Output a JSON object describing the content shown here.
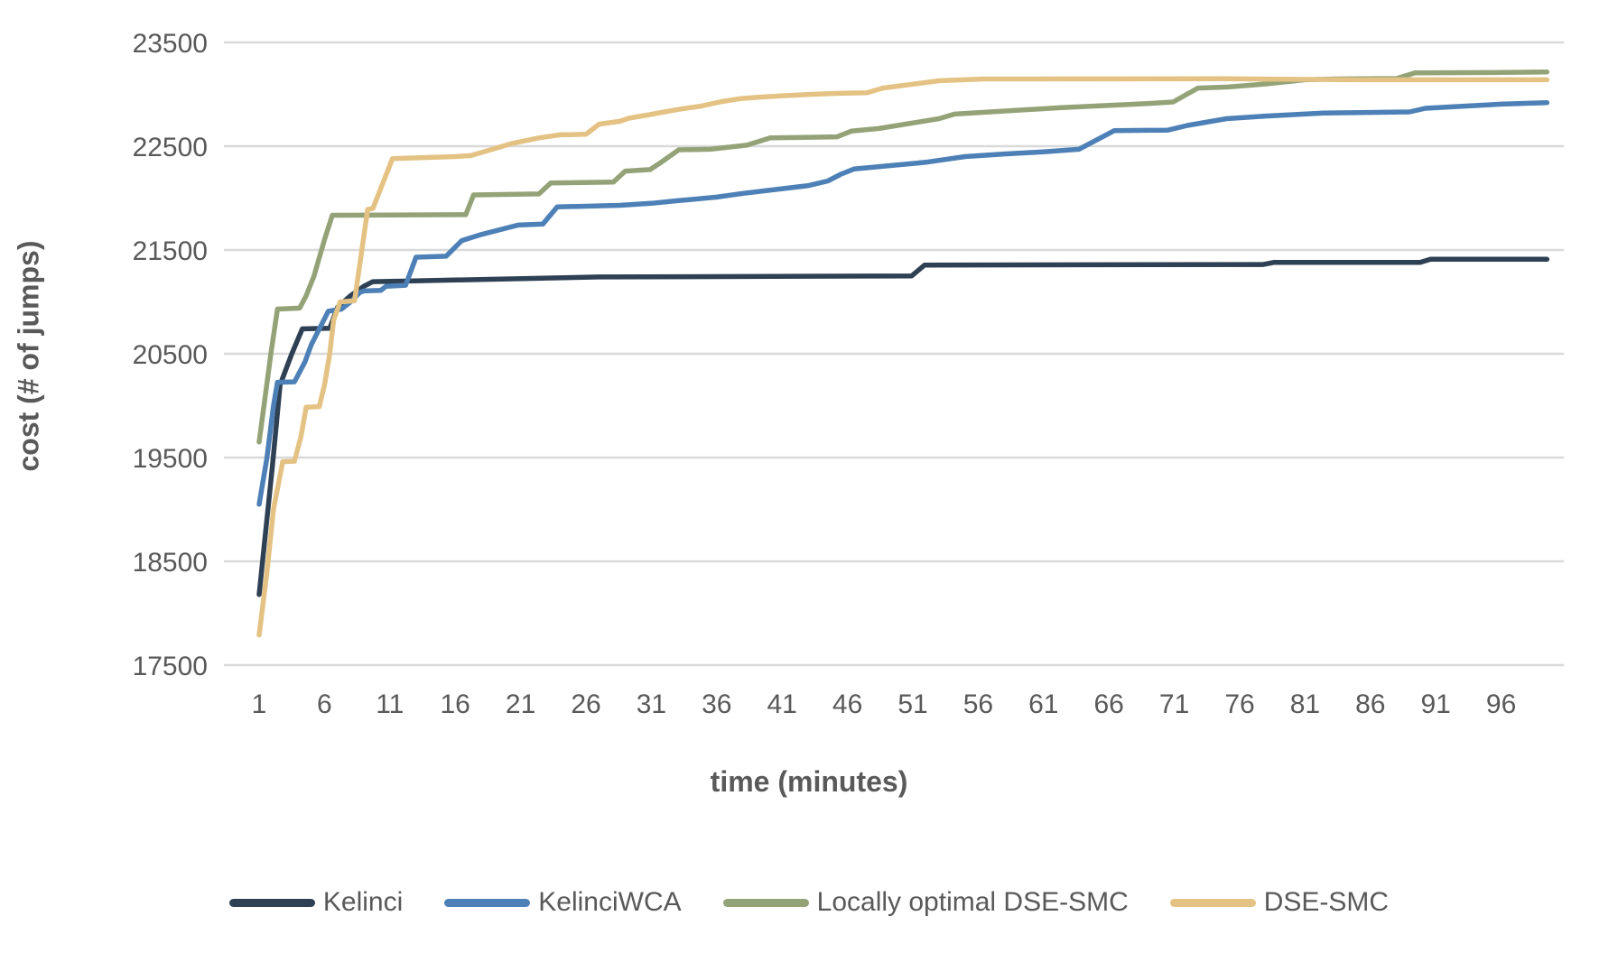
{
  "chart_data": {
    "type": "line",
    "title": "",
    "xlabel": "time (minutes)",
    "ylabel": "cost (# of jumps)",
    "xlim": [
      1,
      101.5
    ],
    "ylim": [
      17500,
      23500
    ],
    "x_ticks": [
      1,
      6,
      11,
      16,
      21,
      26,
      31,
      36,
      41,
      46,
      51,
      56,
      61,
      66,
      71,
      76,
      81,
      86,
      91,
      96
    ],
    "y_ticks": [
      17500,
      18500,
      19500,
      20500,
      21500,
      22500,
      23500
    ],
    "grid": "horizontal-only",
    "grid_color": "#d9d9d9",
    "text_color": "#595959",
    "legend_position": "bottom",
    "series": [
      {
        "name": "Kelinci",
        "color": "#2e4053",
        "points": [
          [
            1,
            18180
          ],
          [
            2,
            19400
          ],
          [
            2.6,
            20200
          ],
          [
            3.5,
            20500
          ],
          [
            4.3,
            20740
          ],
          [
            6.4,
            20745
          ],
          [
            7,
            20950
          ],
          [
            8,
            21060
          ],
          [
            9,
            21150
          ],
          [
            9.7,
            21195
          ],
          [
            12,
            21200
          ],
          [
            27,
            21240
          ],
          [
            50.9,
            21250
          ],
          [
            51.9,
            21355
          ],
          [
            77.8,
            21360
          ],
          [
            78.6,
            21380
          ],
          [
            89.8,
            21380
          ],
          [
            90.6,
            21410
          ],
          [
            99.5,
            21410
          ]
        ]
      },
      {
        "name": "KelinciWCA",
        "color": "#4d80b6",
        "points": [
          [
            1,
            19050
          ],
          [
            1.6,
            19500
          ],
          [
            2.1,
            20000
          ],
          [
            2.4,
            20225
          ],
          [
            3.7,
            20230
          ],
          [
            4.5,
            20420
          ],
          [
            5,
            20590
          ],
          [
            6.3,
            20910
          ],
          [
            7.3,
            20930
          ],
          [
            8,
            21000
          ],
          [
            8.7,
            21090
          ],
          [
            9,
            21105
          ],
          [
            10.3,
            21110
          ],
          [
            10.7,
            21150
          ],
          [
            12.2,
            21160
          ],
          [
            13,
            21430
          ],
          [
            15.3,
            21440
          ],
          [
            16.5,
            21590
          ],
          [
            18,
            21650
          ],
          [
            20.8,
            21740
          ],
          [
            22.7,
            21750
          ],
          [
            23.8,
            21915
          ],
          [
            28.6,
            21930
          ],
          [
            31,
            21950
          ],
          [
            33,
            21975
          ],
          [
            36,
            22010
          ],
          [
            38,
            22045
          ],
          [
            41,
            22090
          ],
          [
            43,
            22120
          ],
          [
            44.5,
            22165
          ],
          [
            45.5,
            22230
          ],
          [
            46.5,
            22280
          ],
          [
            49,
            22310
          ],
          [
            52,
            22345
          ],
          [
            55,
            22400
          ],
          [
            58,
            22425
          ],
          [
            61,
            22445
          ],
          [
            63.7,
            22470
          ],
          [
            66.4,
            22650
          ],
          [
            70.5,
            22655
          ],
          [
            72,
            22700
          ],
          [
            75,
            22765
          ],
          [
            78,
            22790
          ],
          [
            82.4,
            22820
          ],
          [
            89,
            22830
          ],
          [
            90.2,
            22865
          ],
          [
            93,
            22885
          ],
          [
            96,
            22905
          ],
          [
            99.5,
            22920
          ]
        ]
      },
      {
        "name": "Locally optimal DSE-SMC",
        "color": "#94a377",
        "points": [
          [
            1,
            19650
          ],
          [
            1.9,
            20500
          ],
          [
            2.4,
            20930
          ],
          [
            4.1,
            20940
          ],
          [
            4.6,
            21060
          ],
          [
            5.2,
            21250
          ],
          [
            6,
            21600
          ],
          [
            6.6,
            21835
          ],
          [
            16.8,
            21840
          ],
          [
            17.4,
            22030
          ],
          [
            22.4,
            22040
          ],
          [
            23.3,
            22145
          ],
          [
            28.1,
            22155
          ],
          [
            29,
            22260
          ],
          [
            30.9,
            22275
          ],
          [
            31.8,
            22350
          ],
          [
            33.1,
            22465
          ],
          [
            35.5,
            22470
          ],
          [
            38.3,
            22510
          ],
          [
            40.1,
            22580
          ],
          [
            45.2,
            22590
          ],
          [
            46.3,
            22645
          ],
          [
            48.4,
            22670
          ],
          [
            50.3,
            22710
          ],
          [
            53,
            22765
          ],
          [
            54.2,
            22810
          ],
          [
            62.2,
            22870
          ],
          [
            69.1,
            22912
          ],
          [
            70.9,
            22926
          ],
          [
            72.8,
            23060
          ],
          [
            75.1,
            23070
          ],
          [
            78,
            23100
          ],
          [
            81,
            23140
          ],
          [
            83.4,
            23148
          ],
          [
            88,
            23152
          ],
          [
            89.4,
            23207
          ],
          [
            95,
            23210
          ],
          [
            99.5,
            23216
          ]
        ]
      },
      {
        "name": "DSE-SMC",
        "color": "#e4c284",
        "points": [
          [
            1,
            17790
          ],
          [
            1.6,
            18400
          ],
          [
            2.1,
            19000
          ],
          [
            2.8,
            19460
          ],
          [
            3.7,
            19465
          ],
          [
            4.2,
            19700
          ],
          [
            4.6,
            19985
          ],
          [
            5.6,
            19990
          ],
          [
            6,
            20200
          ],
          [
            6.4,
            20500
          ],
          [
            6.7,
            20825
          ],
          [
            7.2,
            21000
          ],
          [
            8.3,
            21010
          ],
          [
            9.3,
            21890
          ],
          [
            9.7,
            21900
          ],
          [
            11.2,
            22380
          ],
          [
            16,
            22400
          ],
          [
            17.2,
            22410
          ],
          [
            18.7,
            22465
          ],
          [
            20.3,
            22525
          ],
          [
            22.4,
            22580
          ],
          [
            24,
            22610
          ],
          [
            26,
            22615
          ],
          [
            27,
            22712
          ],
          [
            28.6,
            22740
          ],
          [
            29.3,
            22770
          ],
          [
            30.7,
            22800
          ],
          [
            32,
            22830
          ],
          [
            33.2,
            22857
          ],
          [
            34.8,
            22886
          ],
          [
            36.4,
            22930
          ],
          [
            37.8,
            22958
          ],
          [
            39.2,
            22972
          ],
          [
            41,
            22986
          ],
          [
            43.3,
            23000
          ],
          [
            45.4,
            23010
          ],
          [
            47.5,
            23015
          ],
          [
            48.7,
            23060
          ],
          [
            53,
            23130
          ],
          [
            56.4,
            23148
          ],
          [
            75,
            23150
          ],
          [
            85,
            23140
          ],
          [
            99.5,
            23140
          ]
        ]
      }
    ]
  }
}
